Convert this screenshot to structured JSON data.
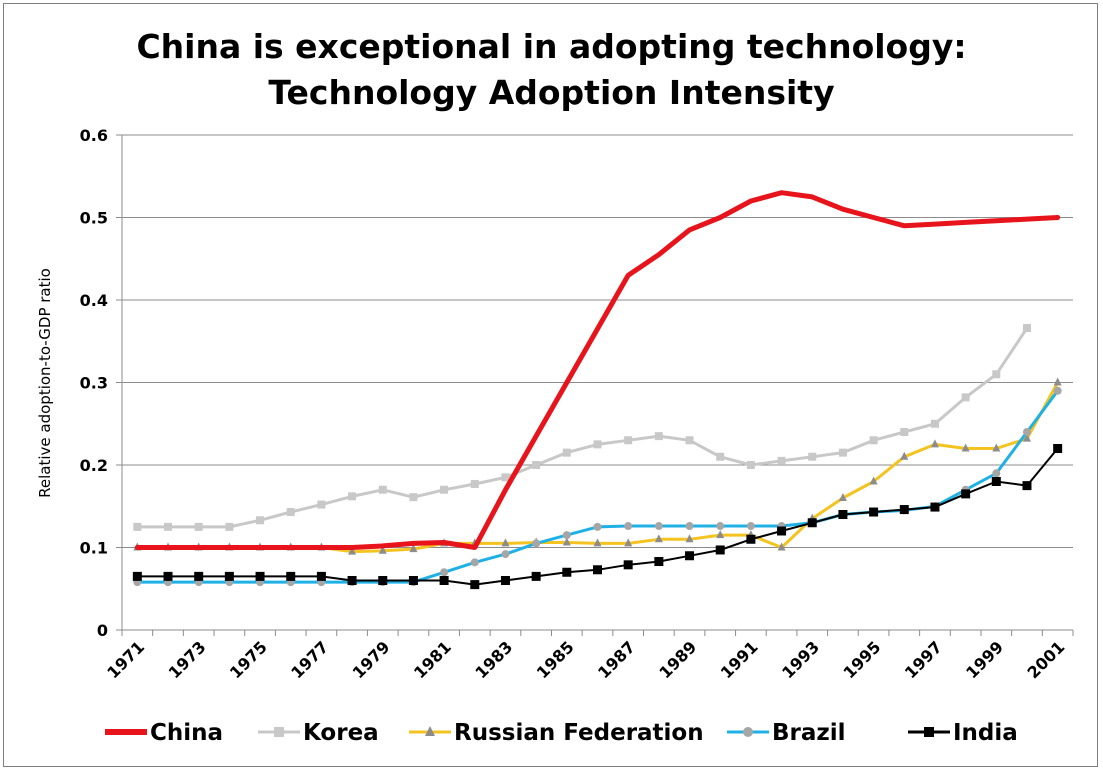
{
  "chart_data": {
    "type": "line",
    "title_line1": "China is exceptional in adopting technology:",
    "title_line2": "Technology Adoption Intensity",
    "xlabel": "",
    "ylabel": "Relative adoption-to-GDP ratio",
    "ylim": [
      0,
      0.6
    ],
    "yticks": [
      "0",
      "0.1",
      "0.2",
      "0.3",
      "0.4",
      "0.5",
      "0.6"
    ],
    "x": [
      1971,
      1972,
      1973,
      1974,
      1975,
      1976,
      1977,
      1978,
      1979,
      1980,
      1981,
      1982,
      1983,
      1984,
      1985,
      1986,
      1987,
      1988,
      1989,
      1990,
      1991,
      1992,
      1993,
      1994,
      1995,
      1996,
      1997,
      1998,
      1999,
      2000,
      2001
    ],
    "xtick_labels": [
      "1971",
      "1973",
      "1975",
      "1977",
      "1979",
      "1981",
      "1983",
      "1985",
      "1987",
      "1989",
      "1991",
      "1993",
      "1995",
      "1997",
      "1999",
      "2001"
    ],
    "grid": "horizontal",
    "legend_position": "bottom",
    "series": [
      {
        "name": "China",
        "color": "#e8141b",
        "marker": "none",
        "width": 5,
        "values": [
          0.1,
          0.1,
          0.1,
          0.1,
          0.1,
          0.1,
          0.1,
          0.1,
          0.102,
          0.105,
          0.106,
          0.1,
          0.17,
          0.235,
          0.3,
          0.365,
          0.43,
          0.455,
          0.485,
          0.5,
          0.52,
          0.53,
          0.525,
          0.51,
          0.5,
          0.49,
          0.492,
          0.494,
          0.496,
          0.498,
          0.5
        ]
      },
      {
        "name": "Korea",
        "color": "#c8c8c8",
        "marker": "square",
        "width": 3,
        "values": [
          0.125,
          0.125,
          0.125,
          0.125,
          0.133,
          0.143,
          0.152,
          0.162,
          0.17,
          0.161,
          0.17,
          0.177,
          0.185,
          0.2,
          0.215,
          0.225,
          0.23,
          0.235,
          0.23,
          0.21,
          0.2,
          0.205,
          0.21,
          0.215,
          0.23,
          0.24,
          0.25,
          0.282,
          0.31,
          0.366,
          null
        ]
      },
      {
        "name": "Russian Federation",
        "color": "#f5c31f",
        "marker": "triangle",
        "width": 3,
        "values": [
          0.1,
          0.1,
          0.1,
          0.1,
          0.1,
          0.1,
          0.1,
          0.095,
          0.096,
          0.098,
          0.105,
          0.105,
          0.105,
          0.106,
          0.106,
          0.105,
          0.105,
          0.11,
          0.11,
          0.115,
          0.115,
          0.1,
          0.135,
          0.16,
          0.18,
          0.21,
          0.225,
          0.22,
          0.22,
          0.232,
          0.3
        ]
      },
      {
        "name": "Brazil",
        "color": "#1fb1e6",
        "marker": "circle",
        "width": 3,
        "values": [
          0.058,
          0.058,
          0.058,
          0.058,
          0.058,
          0.058,
          0.058,
          0.058,
          0.058,
          0.058,
          0.07,
          0.082,
          0.092,
          0.105,
          0.115,
          0.125,
          0.126,
          0.126,
          0.126,
          0.126,
          0.126,
          0.126,
          0.13,
          0.14,
          0.143,
          0.145,
          0.15,
          0.17,
          0.19,
          0.24,
          0.29
        ]
      },
      {
        "name": "India",
        "color": "#000000",
        "marker": "square",
        "width": 2,
        "values": [
          0.065,
          0.065,
          0.065,
          0.065,
          0.065,
          0.065,
          0.065,
          0.06,
          0.06,
          0.06,
          0.06,
          0.055,
          0.06,
          0.065,
          0.07,
          0.073,
          0.079,
          0.083,
          0.09,
          0.097,
          0.11,
          0.12,
          0.13,
          0.14,
          0.143,
          0.146,
          0.149,
          0.165,
          0.18,
          0.175,
          0.22
        ]
      }
    ]
  }
}
